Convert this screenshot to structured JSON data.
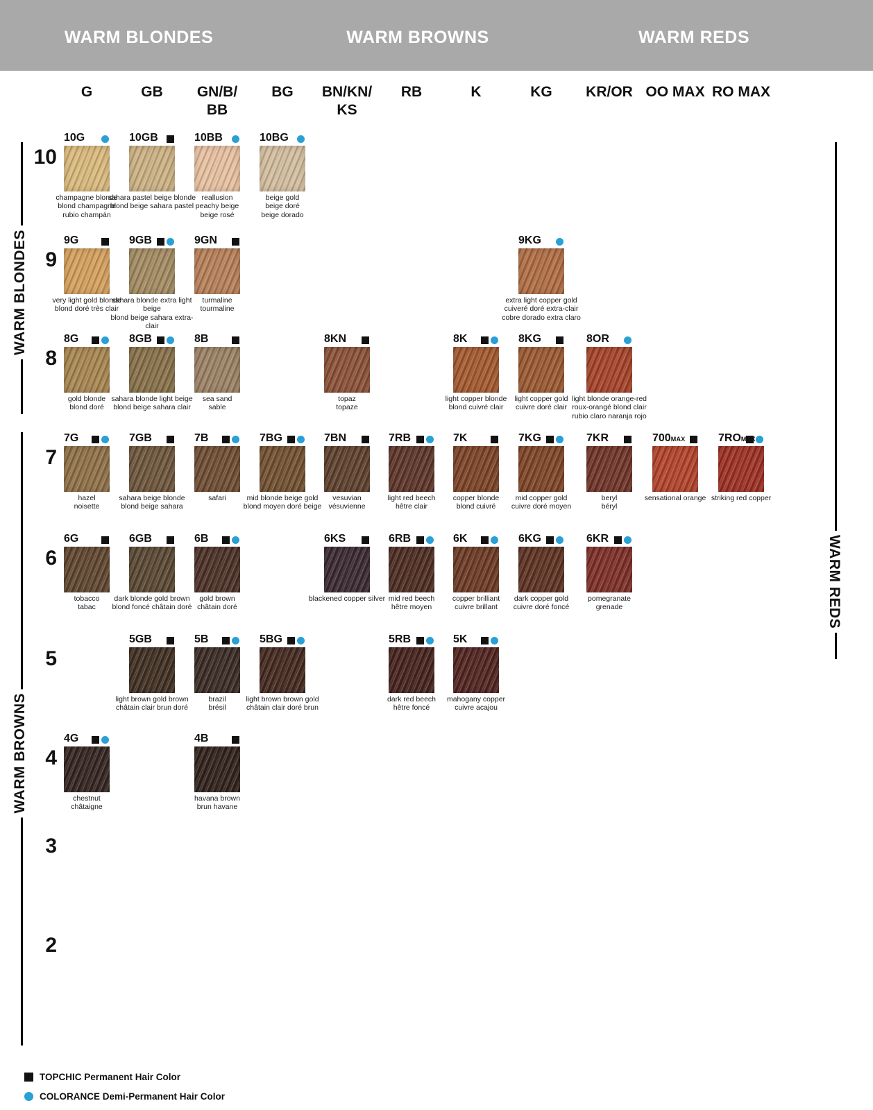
{
  "section_headers": {
    "blondes": "WARM BLONDES",
    "browns": "WARM BROWNS",
    "reds": "WARM REDS"
  },
  "side_labels": {
    "left_top": "WARM BLONDES",
    "left_bottom": "WARM BROWNS",
    "right": "WARM REDS"
  },
  "columns": [
    "G",
    "GB",
    "GN/B/\nBB",
    "BG",
    "BN/KN/\nKS",
    "RB",
    "K",
    "KG",
    "KR/OR",
    "OO MAX",
    "RO MAX"
  ],
  "row_numbers": [
    "10",
    "9",
    "8",
    "7",
    "6",
    "5",
    "4",
    "3",
    "2"
  ],
  "legend": {
    "topchic": "TOPCHIC Permanent Hair Color",
    "colorance": "COLORANCE Demi-Permanent Hair Color"
  },
  "colors": {
    "band_gray": "#a9a9a9",
    "topchic_marker": "#121212",
    "colorance_marker": "#29a0d6"
  },
  "swatches": [
    {
      "code": "10G",
      "suffix": "",
      "row": "10",
      "col": 0,
      "topchic": false,
      "colorance": true,
      "color": "#d9b97c",
      "names": [
        "champagne blonde",
        "blond champagne",
        "rubio champán"
      ]
    },
    {
      "code": "10GB",
      "suffix": "",
      "row": "10",
      "col": 1,
      "topchic": true,
      "colorance": false,
      "color": "#cbb183",
      "names": [
        "sahara pastel beige blonde",
        "blond beige sahara pastel"
      ]
    },
    {
      "code": "10BB",
      "suffix": "",
      "row": "10",
      "col": 2,
      "topchic": false,
      "colorance": true,
      "color": "#e7c0a0",
      "names": [
        "reallusion",
        "peachy beige",
        "beige rosé"
      ]
    },
    {
      "code": "10BG",
      "suffix": "",
      "row": "10",
      "col": 3,
      "topchic": false,
      "colorance": true,
      "color": "#d2bd9e",
      "names": [
        "beige gold",
        "beige doré",
        "beige dorado"
      ]
    },
    {
      "code": "9G",
      "suffix": "",
      "row": "9",
      "col": 0,
      "topchic": true,
      "colorance": false,
      "color": "#d49f5d",
      "names": [
        "very light gold blonde",
        "blond doré très clair"
      ]
    },
    {
      "code": "9GB",
      "suffix": "",
      "row": "9",
      "col": 1,
      "topchic": true,
      "colorance": true,
      "color": "#a28a61",
      "names": [
        "sahara blonde extra light beige",
        "blond beige sahara extra-clair"
      ]
    },
    {
      "code": "9GN",
      "suffix": "",
      "row": "9",
      "col": 2,
      "topchic": true,
      "colorance": false,
      "color": "#b67f58",
      "names": [
        "turmaline",
        "tourmaline"
      ]
    },
    {
      "code": "9KG",
      "suffix": "",
      "row": "9",
      "col": 7,
      "topchic": false,
      "colorance": true,
      "color": "#b06d43",
      "names": [
        "extra light copper gold",
        "cuiveré doré extra-clair",
        "cobre dorado extra claro"
      ]
    },
    {
      "code": "8G",
      "suffix": "",
      "row": "8",
      "col": 0,
      "topchic": true,
      "colorance": true,
      "color": "#a78550",
      "names": [
        "gold blonde",
        "blond doré"
      ]
    },
    {
      "code": "8GB",
      "suffix": "",
      "row": "8",
      "col": 1,
      "topchic": true,
      "colorance": true,
      "color": "#877049",
      "names": [
        "sahara blonde light beige",
        "blond beige sahara clair"
      ]
    },
    {
      "code": "8B",
      "suffix": "",
      "row": "8",
      "col": 2,
      "topchic": true,
      "colorance": false,
      "color": "#9a8164",
      "names": [
        "sea sand",
        "sable"
      ]
    },
    {
      "code": "8KN",
      "suffix": "",
      "row": "8",
      "col": 4,
      "topchic": true,
      "colorance": false,
      "color": "#8b5137",
      "names": [
        "topaz",
        "topaze"
      ]
    },
    {
      "code": "8K",
      "suffix": "",
      "row": "8",
      "col": 6,
      "topchic": true,
      "colorance": true,
      "color": "#a3592e",
      "names": [
        "light copper blonde",
        "blond cuivré clair"
      ]
    },
    {
      "code": "8KG",
      "suffix": "",
      "row": "8",
      "col": 7,
      "topchic": true,
      "colorance": false,
      "color": "#9a5931",
      "names": [
        "light copper gold",
        "cuivre doré clair"
      ]
    },
    {
      "code": "8OR",
      "suffix": "",
      "row": "8",
      "col": 8,
      "topchic": false,
      "colorance": true,
      "color": "#a64329",
      "names": [
        "light blonde orange-red",
        "roux-orangé blond clair",
        "rubio claro naranja rojo"
      ]
    },
    {
      "code": "7G",
      "suffix": "",
      "row": "7",
      "col": 0,
      "topchic": true,
      "colorance": true,
      "color": "#8e7047",
      "names": [
        "hazel",
        "noisette"
      ]
    },
    {
      "code": "7GB",
      "suffix": "",
      "row": "7",
      "col": 1,
      "topchic": true,
      "colorance": false,
      "color": "#6d553b",
      "names": [
        "sahara beige blonde",
        "blond beige sahara"
      ]
    },
    {
      "code": "7B",
      "suffix": "",
      "row": "7",
      "col": 2,
      "topchic": true,
      "colorance": true,
      "color": "#6e4d33",
      "names": [
        "safari"
      ]
    },
    {
      "code": "7BG",
      "suffix": "",
      "row": "7",
      "col": 3,
      "topchic": true,
      "colorance": true,
      "color": "#715030",
      "names": [
        "mid blonde beige gold",
        "blond moyen doré beige"
      ]
    },
    {
      "code": "7BN",
      "suffix": "",
      "row": "7",
      "col": 4,
      "topchic": true,
      "colorance": false,
      "color": "#5e402d",
      "names": [
        "vesuvian",
        "vésuvienne"
      ]
    },
    {
      "code": "7RB",
      "suffix": "",
      "row": "7",
      "col": 5,
      "topchic": true,
      "colorance": true,
      "color": "#5d3529",
      "names": [
        "light red beech",
        "hêtre clair"
      ]
    },
    {
      "code": "7K",
      "suffix": "",
      "row": "7",
      "col": 6,
      "topchic": true,
      "colorance": false,
      "color": "#7c4327",
      "names": [
        "copper blonde",
        "blond cuivré"
      ]
    },
    {
      "code": "7KG",
      "suffix": "",
      "row": "7",
      "col": 7,
      "topchic": true,
      "colorance": true,
      "color": "#7e4527",
      "names": [
        "mid copper gold",
        "cuivre doré moyen"
      ]
    },
    {
      "code": "7KR",
      "suffix": "",
      "row": "7",
      "col": 8,
      "topchic": true,
      "colorance": false,
      "color": "#6f3428",
      "names": [
        "beryl",
        "béryl"
      ]
    },
    {
      "code": "700",
      "suffix": "MAX",
      "row": "7",
      "col": 9,
      "topchic": true,
      "colorance": false,
      "color": "#b2432b",
      "names": [
        "sensational orange"
      ]
    },
    {
      "code": "7RO",
      "suffix": "MAX",
      "row": "7",
      "col": 10,
      "topchic": true,
      "colorance": true,
      "color": "#9d3024",
      "names": [
        "striking red copper"
      ]
    },
    {
      "code": "6G",
      "suffix": "",
      "row": "6",
      "col": 0,
      "topchic": true,
      "colorance": false,
      "color": "#5f462f",
      "names": [
        "tobacco",
        "tabac"
      ]
    },
    {
      "code": "6GB",
      "suffix": "",
      "row": "6",
      "col": 1,
      "topchic": true,
      "colorance": false,
      "color": "#594732",
      "names": [
        "dark blonde gold brown",
        "blond foncé châtain doré"
      ]
    },
    {
      "code": "6B",
      "suffix": "",
      "row": "6",
      "col": 2,
      "topchic": true,
      "colorance": true,
      "color": "#4b3127",
      "names": [
        "gold brown",
        "châtain doré"
      ]
    },
    {
      "code": "6KS",
      "suffix": "",
      "row": "6",
      "col": 4,
      "topchic": true,
      "colorance": false,
      "color": "#3b2931",
      "names": [
        "blackened copper silver"
      ]
    },
    {
      "code": "6RB",
      "suffix": "",
      "row": "6",
      "col": 5,
      "topchic": true,
      "colorance": true,
      "color": "#4d2c22",
      "names": [
        "mid red beech",
        "hêtre moyen"
      ]
    },
    {
      "code": "6K",
      "suffix": "",
      "row": "6",
      "col": 6,
      "topchic": true,
      "colorance": true,
      "color": "#6c3a24",
      "names": [
        "copper brilliant",
        "cuivre brillant"
      ]
    },
    {
      "code": "6KG",
      "suffix": "",
      "row": "6",
      "col": 7,
      "topchic": true,
      "colorance": true,
      "color": "#5d3222",
      "names": [
        "dark copper gold",
        "cuivre doré foncé"
      ]
    },
    {
      "code": "6KR",
      "suffix": "",
      "row": "6",
      "col": 8,
      "topchic": true,
      "colorance": true,
      "color": "#7d2f28",
      "names": [
        "pomegranate",
        "grenade"
      ]
    },
    {
      "code": "5GB",
      "suffix": "",
      "row": "5",
      "col": 1,
      "topchic": true,
      "colorance": false,
      "color": "#402f22",
      "names": [
        "light brown gold brown",
        "châtain clair brun doré"
      ]
    },
    {
      "code": "5B",
      "suffix": "",
      "row": "5",
      "col": 2,
      "topchic": true,
      "colorance": true,
      "color": "#3a2b24",
      "names": [
        "brazil",
        "brésil"
      ]
    },
    {
      "code": "5BG",
      "suffix": "",
      "row": "5",
      "col": 3,
      "topchic": true,
      "colorance": true,
      "color": "#44291f",
      "names": [
        "light brown brown gold",
        "châtain clair doré brun"
      ]
    },
    {
      "code": "5RB",
      "suffix": "",
      "row": "5",
      "col": 5,
      "topchic": true,
      "colorance": true,
      "color": "#46231d",
      "names": [
        "dark red beech",
        "hêtre foncé"
      ]
    },
    {
      "code": "5K",
      "suffix": "",
      "row": "5",
      "col": 6,
      "topchic": true,
      "colorance": true,
      "color": "#512420",
      "names": [
        "mahogany copper",
        "cuivre acajou"
      ]
    },
    {
      "code": "4G",
      "suffix": "",
      "row": "4",
      "col": 0,
      "topchic": true,
      "colorance": true,
      "color": "#342520",
      "names": [
        "chestnut",
        "châtaigne"
      ]
    },
    {
      "code": "4B",
      "suffix": "",
      "row": "4",
      "col": 2,
      "topchic": true,
      "colorance": false,
      "color": "#31221c",
      "names": [
        "havana brown",
        "brun havane"
      ]
    }
  ]
}
